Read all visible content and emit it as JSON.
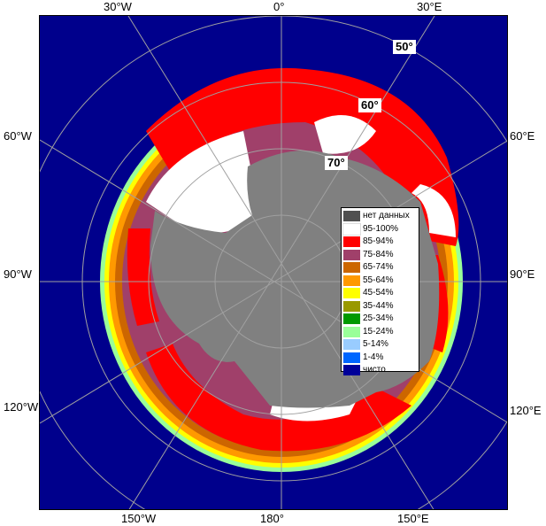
{
  "map": {
    "longitude_labels": {
      "top": [
        "30°W",
        "0°",
        "30°E"
      ],
      "left": [
        "60°W",
        "90°W",
        "120°W"
      ],
      "right": [
        "60°E",
        "90°E",
        "120°E"
      ],
      "bottom": [
        "150°W",
        "180°",
        "150°E"
      ]
    },
    "latitude_labels": [
      "50°",
      "60°",
      "70°"
    ],
    "colors": {
      "ocean": "#00008c",
      "land": "#808080",
      "grid": "#a0a0a0"
    }
  },
  "legend": {
    "items": [
      {
        "label": "нет данных",
        "color": "#505050"
      },
      {
        "label": "95-100%",
        "color": "#ffffff"
      },
      {
        "label": "85-94%",
        "color": "#ff0000"
      },
      {
        "label": "75-84%",
        "color": "#a0406a"
      },
      {
        "label": "65-74%",
        "color": "#cc6600"
      },
      {
        "label": "55-64%",
        "color": "#ff9900"
      },
      {
        "label": "45-54%",
        "color": "#ffff00"
      },
      {
        "label": "35-44%",
        "color": "#999900"
      },
      {
        "label": "25-34%",
        "color": "#009900"
      },
      {
        "label": "15-24%",
        "color": "#99ff99"
      },
      {
        "label": "5-14%",
        "color": "#99ccff"
      },
      {
        "label": "1-4%",
        "color": "#0066ff"
      },
      {
        "label": "чисто",
        "color": "#000099"
      }
    ]
  }
}
